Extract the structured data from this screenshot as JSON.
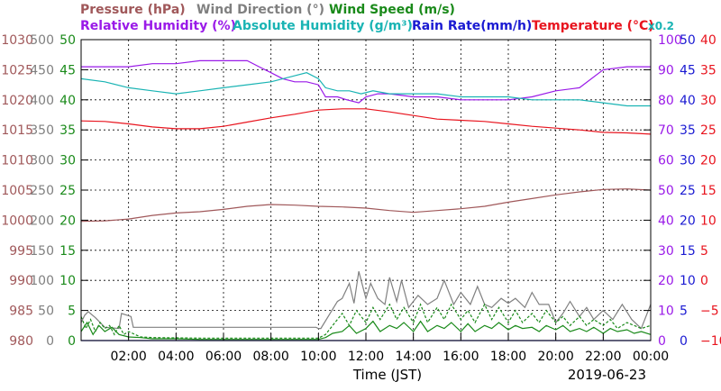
{
  "chart_data": {
    "type": "line",
    "date": "2019-06-23",
    "xlabel": "Time (JST)",
    "x_ticks": [
      "02:00",
      "04:00",
      "06:00",
      "08:00",
      "10:00",
      "12:00",
      "14:00",
      "16:00",
      "18:00",
      "20:00",
      "22:00",
      "00:00"
    ],
    "legend": [
      {
        "label": "Pressure (hPa)",
        "color": "#a0585a"
      },
      {
        "label": "Wind Direction (°)",
        "color": "#808080"
      },
      {
        "label": "Wind Speed (m/s)",
        "color": "#1a8a1a"
      },
      {
        "label": "Relative Humidity (%)",
        "color": "#9a1ae8"
      },
      {
        "label": "Absolute Humidity (g/m³)",
        "color": "#1ab4b4"
      },
      {
        "label": "x0.2",
        "color": "#1ab4b4"
      },
      {
        "label": "Rain Rate(mm/h)",
        "color": "#1a1ad2"
      },
      {
        "label": "Temperature (°C)",
        "color": "#e8141e"
      }
    ],
    "axes": {
      "pressure": {
        "color": "#a0585a",
        "ticks": [
          "980",
          "985",
          "990",
          "995",
          "1000",
          "1005",
          "1010",
          "1015",
          "1020",
          "1025",
          "1030"
        ],
        "range": [
          980,
          1030
        ]
      },
      "wind_direction": {
        "color": "#808080",
        "ticks": [
          "0",
          "50",
          "100",
          "150",
          "200",
          "250",
          "300",
          "350",
          "400",
          "450",
          "500"
        ],
        "range": [
          0,
          500
        ]
      },
      "wind_speed": {
        "color": "#1a8a1a",
        "ticks": [
          "0",
          "5",
          "10",
          "15",
          "20",
          "25",
          "30",
          "35",
          "40",
          "45",
          "50"
        ],
        "range": [
          0,
          50
        ]
      },
      "humidity": {
        "color": "#9a1ae8",
        "ticks": [
          "0",
          "10",
          "20",
          "30",
          "40",
          "50",
          "60",
          "70",
          "80",
          "90",
          "100"
        ],
        "range": [
          0,
          100
        ]
      },
      "rain_rate": {
        "color": "#1a1ad2",
        "ticks": [
          "0",
          "5",
          "10",
          "15",
          "20",
          "25",
          "30",
          "35",
          "40",
          "45",
          "50"
        ],
        "range": [
          0,
          50
        ]
      },
      "temperature": {
        "color": "#e8141e",
        "ticks": [
          "−10",
          "−5",
          "0",
          "5",
          "10",
          "15",
          "20",
          "25",
          "30",
          "35",
          "40"
        ],
        "range": [
          -10,
          40
        ]
      }
    },
    "x_range_hours": [
      0,
      24
    ],
    "series": [
      {
        "name": "Relative Humidity (%)",
        "axis": "humidity",
        "color": "#9a1ae8",
        "x": [
          0,
          2,
          3,
          4,
          5,
          6,
          6.5,
          7,
          7.5,
          8,
          8.5,
          9,
          9.5,
          10,
          10.3,
          10.8,
          11.2,
          11.7,
          12,
          12.5,
          13,
          14,
          15,
          16,
          17,
          18,
          19,
          20,
          21,
          22,
          23,
          24
        ],
        "y": [
          91,
          91,
          92,
          92,
          93,
          93,
          93,
          93,
          91,
          89,
          87,
          86,
          86,
          85,
          81,
          81,
          80,
          79,
          81,
          82,
          82,
          81,
          81,
          80,
          80,
          80,
          81,
          83,
          84,
          90,
          91,
          91
        ]
      },
      {
        "name": "Absolute Humidity (g/m³)",
        "axis": "humidity",
        "color": "#1ab4b4",
        "x": [
          0,
          1,
          2,
          3,
          4,
          5,
          6,
          7,
          8,
          9,
          9.5,
          10,
          10.3,
          10.8,
          11.3,
          11.8,
          12.3,
          13,
          14,
          15,
          16,
          17,
          18,
          19,
          20,
          21,
          22,
          23,
          24
        ],
        "y": [
          87,
          86,
          84,
          83,
          82,
          83,
          84,
          85,
          86,
          88,
          89,
          87,
          84,
          83,
          83,
          82,
          83,
          82,
          82,
          82,
          81,
          81,
          81,
          80,
          80,
          80,
          79,
          78,
          78
        ]
      },
      {
        "name": "Temperature (°C)",
        "axis": "temperature",
        "color": "#e8141e",
        "x": [
          0,
          1,
          2,
          3,
          4,
          5,
          6,
          7,
          8,
          9,
          10,
          11,
          12,
          13,
          14,
          15,
          16,
          17,
          18,
          19,
          20,
          21,
          22,
          23,
          24
        ],
        "y": [
          26.5,
          26.4,
          26.0,
          25.5,
          25.2,
          25.2,
          25.6,
          26.3,
          27.0,
          27.6,
          28.3,
          28.5,
          28.5,
          28.0,
          27.4,
          26.8,
          26.6,
          26.4,
          26.0,
          25.6,
          25.3,
          25.0,
          24.6,
          24.5,
          24.3
        ]
      },
      {
        "name": "Pressure (hPa)",
        "axis": "pressure",
        "color": "#a0585a",
        "x": [
          0,
          1,
          2,
          3,
          4,
          5,
          6,
          7,
          8,
          9,
          10,
          11,
          12,
          13,
          14,
          15,
          16,
          17,
          18,
          19,
          20,
          21,
          22,
          23,
          24
        ],
        "y": [
          999.8,
          999.9,
          1000.2,
          1000.8,
          1001.2,
          1001.4,
          1001.8,
          1002.3,
          1002.6,
          1002.5,
          1002.3,
          1002.2,
          1002.0,
          1001.6,
          1001.3,
          1001.6,
          1001.9,
          1002.3,
          1003.0,
          1003.6,
          1004.2,
          1004.7,
          1005.1,
          1005.2,
          1005.0
        ]
      },
      {
        "name": "Wind Direction (°)",
        "axis": "wind_direction",
        "color": "#808080",
        "x": [
          0,
          0.15,
          0.3,
          0.6,
          1,
          1.6,
          1.7,
          2.1,
          2.2,
          9.9,
          10,
          10.1,
          10.8,
          11,
          11.3,
          11.5,
          11.7,
          12,
          12.2,
          12.5,
          12.8,
          13,
          13.3,
          13.5,
          13.8,
          14.2,
          14.6,
          15,
          15.3,
          15.7,
          16,
          16.4,
          16.7,
          17,
          17.3,
          17.7,
          18,
          18.3,
          18.7,
          19,
          19.3,
          19.7,
          20,
          20.3,
          20.6,
          21,
          21.3,
          21.6,
          22,
          22.4,
          22.8,
          23.2,
          23.6,
          24
        ],
        "y": [
          30,
          42,
          48,
          38,
          22,
          20,
          45,
          40,
          22,
          22,
          20,
          20,
          65,
          70,
          95,
          62,
          115,
          70,
          95,
          70,
          60,
          105,
          65,
          100,
          55,
          75,
          60,
          70,
          100,
          60,
          80,
          60,
          90,
          60,
          55,
          70,
          62,
          70,
          55,
          80,
          60,
          60,
          30,
          45,
          65,
          40,
          55,
          35,
          50,
          35,
          60,
          35,
          20,
          60
        ]
      },
      {
        "name": "Wind Speed (m/s)",
        "axis": "wind_speed",
        "color": "#1a8a1a",
        "x": [
          0,
          0.25,
          0.5,
          0.75,
          1,
          1.3,
          1.6,
          2,
          2.5,
          3,
          4,
          5,
          6,
          7,
          8,
          9,
          10,
          10.3,
          10.6,
          11,
          11.3,
          11.6,
          12,
          12.3,
          12.6,
          13,
          13.3,
          13.6,
          14,
          14.3,
          14.6,
          15,
          15.3,
          15.6,
          16,
          16.3,
          16.6,
          17,
          17.3,
          17.6,
          18,
          18.3,
          18.6,
          19,
          19.3,
          19.6,
          20,
          20.3,
          20.6,
          21,
          21.3,
          21.6,
          22,
          22.3,
          22.6,
          23,
          23.3,
          23.6,
          24
        ],
        "y": [
          1.5,
          3,
          1,
          2.5,
          1.5,
          2.2,
          1,
          0.6,
          0.5,
          0.3,
          0.3,
          0.2,
          0.2,
          0.2,
          0.2,
          0.2,
          0.2,
          0.5,
          1.2,
          1.5,
          2.5,
          1.2,
          2,
          3.2,
          1.5,
          2.5,
          2,
          3,
          1.5,
          3.2,
          1.5,
          2.5,
          2,
          3,
          1.5,
          2.8,
          1.5,
          2.5,
          2,
          3,
          1.8,
          2.5,
          2,
          2.2,
          1.5,
          2.5,
          1.8,
          2.5,
          1.5,
          2,
          1.5,
          2.2,
          1.2,
          2,
          1.5,
          1.8,
          1.2,
          1.5,
          1
        ]
      },
      {
        "name": "Wind Speed gust (m/s)",
        "axis": "wind_speed",
        "color": "#1a8a1a",
        "dashed": true,
        "x": [
          0,
          0.2,
          0.4,
          0.6,
          0.8,
          1,
          1.2,
          1.4,
          1.6,
          1.8,
          2,
          2.5,
          3,
          5,
          8,
          10,
          10.3,
          10.6,
          11,
          11.3,
          11.6,
          12,
          12.3,
          12.6,
          13,
          13.3,
          13.6,
          14,
          14.3,
          14.6,
          15,
          15.3,
          15.6,
          16,
          16.3,
          16.6,
          17,
          17.3,
          17.6,
          18,
          18.3,
          18.6,
          19,
          19.3,
          19.6,
          20,
          20.3,
          20.6,
          21,
          21.3,
          21.6,
          22,
          22.3,
          22.6,
          23,
          23.3,
          23.6,
          24
        ],
        "y": [
          4,
          2,
          3.5,
          1.5,
          3,
          2,
          2.5,
          1,
          2.5,
          1,
          1.5,
          0.6,
          0.5,
          0.4,
          0.4,
          0.4,
          1,
          2.5,
          4.5,
          2.5,
          5,
          3,
          5.5,
          3.5,
          6,
          3.5,
          5.5,
          3,
          6,
          3,
          5.5,
          3.5,
          6,
          3.5,
          5,
          3,
          6,
          3.5,
          5.5,
          3,
          5,
          3,
          4.5,
          3,
          5,
          3,
          4,
          2.5,
          4,
          2.5,
          3.5,
          2.5,
          3.5,
          2,
          3,
          2.5,
          2,
          2.5
        ]
      },
      {
        "name": "Rain Rate(mm/h)",
        "axis": "rain_rate",
        "color": "#1a1ad2",
        "x": [
          0,
          24
        ],
        "y": [
          0,
          0
        ]
      }
    ]
  }
}
